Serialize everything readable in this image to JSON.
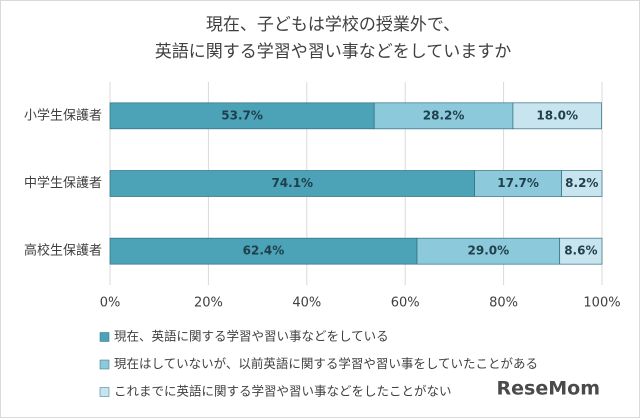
{
  "chart_data": {
    "type": "stacked-bar-horizontal",
    "title": [
      "現在、子どもは学校の授業外で、",
      "英語に関する学習や習い事などをしていますか"
    ],
    "categories": [
      "小学生保護者",
      "中学生保護者",
      "高校生保護者"
    ],
    "series": [
      {
        "name": "現在、英語に関する学習や習い事などをしている",
        "color": "#4ca2b7",
        "values": [
          53.7,
          74.1,
          62.4
        ],
        "value_labels": [
          "53.7%",
          "74.1%",
          "62.4%"
        ]
      },
      {
        "name": "現在はしていないが、以前英語に関する学習や習い事をしていたことがある",
        "color": "#8ccadb",
        "values": [
          28.2,
          17.7,
          29.0
        ],
        "value_labels": [
          "28.2%",
          "17.7%",
          "29.0%"
        ]
      },
      {
        "name": "これまでに英語に関する学習や習い事などをしたことがない",
        "color": "#c8e4ee",
        "values": [
          18.0,
          8.2,
          8.6
        ],
        "value_labels": [
          "18.0%",
          "8.2%",
          "8.6%"
        ]
      }
    ],
    "xlim": [
      0,
      100
    ],
    "xticks": [
      {
        "value": 0,
        "label": "0%"
      },
      {
        "value": 20,
        "label": "20%"
      },
      {
        "value": 40,
        "label": "40%"
      },
      {
        "value": 60,
        "label": "60%"
      },
      {
        "value": 80,
        "label": "80%"
      },
      {
        "value": 100,
        "label": "100%"
      }
    ],
    "grid": true,
    "watermark": "ReseMom"
  }
}
